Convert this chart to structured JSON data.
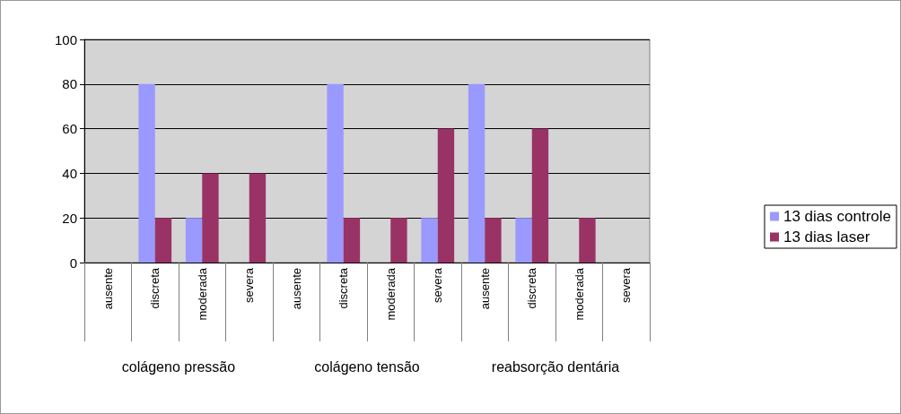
{
  "chart_data": {
    "type": "bar",
    "categories": [
      "ausente",
      "discreta",
      "moderada",
      "severa",
      "ausente",
      "discreta",
      "moderada",
      "severa",
      "ausente",
      "discreta",
      "moderada",
      "severa"
    ],
    "annotations": [
      "colágeno pressão",
      "colágeno tensão",
      "reabsorção dentária"
    ],
    "series": [
      {
        "name": "13 dias controle",
        "color": "#9999ff",
        "values": [
          0,
          80,
          20,
          0,
          0,
          80,
          0,
          20,
          80,
          20,
          0,
          0
        ]
      },
      {
        "name": "13 dias laser",
        "color": "#993366",
        "values": [
          0,
          20,
          40,
          40,
          0,
          20,
          20,
          60,
          20,
          60,
          20,
          0
        ]
      }
    ],
    "ylim": [
      0,
      100
    ],
    "yticks": [
      0,
      20,
      40,
      60,
      80,
      100
    ],
    "grid": "y",
    "legend": "right"
  }
}
